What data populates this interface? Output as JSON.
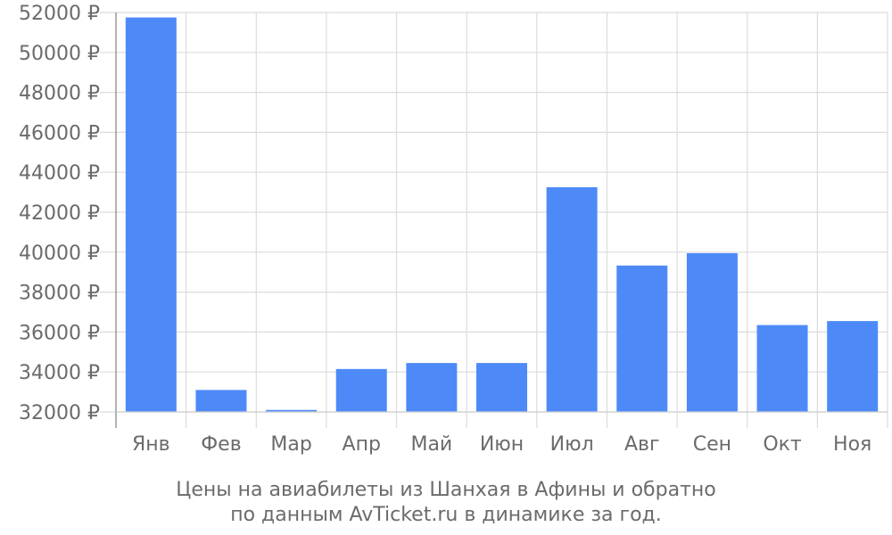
{
  "chart_data": {
    "type": "bar",
    "title": "",
    "categories": [
      "Янв",
      "Фев",
      "Мар",
      "Апр",
      "Май",
      "Июн",
      "Июл",
      "Авг",
      "Сен",
      "Окт",
      "Ноя"
    ],
    "values": [
      51750,
      33100,
      32100,
      34150,
      34450,
      34450,
      43250,
      39330,
      39950,
      36350,
      36550
    ],
    "ylim": [
      32000,
      52000
    ],
    "yticks": [
      32000,
      34000,
      36000,
      38000,
      40000,
      42000,
      44000,
      46000,
      48000,
      50000,
      52000
    ],
    "y_suffix": " ₽",
    "bar_color": "#4d8af8",
    "grid": true,
    "caption": [
      "Цены на авиабилеты из Шанхая в Афины и обратно",
      "по данным AvTicket.ru в динамике за год."
    ]
  }
}
